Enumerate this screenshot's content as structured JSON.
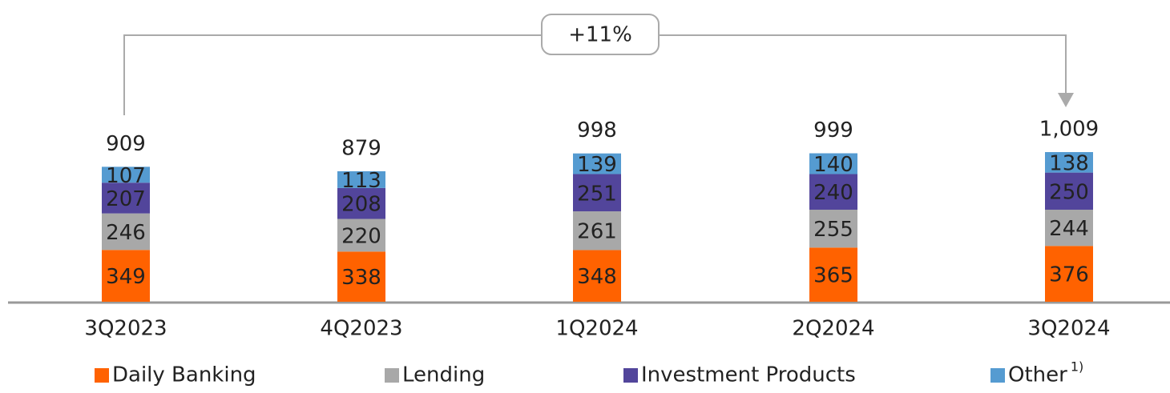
{
  "chart_data": {
    "type": "stacked_bar",
    "annotation": "+11%",
    "categories": [
      "3Q2023",
      "4Q2023",
      "1Q2024",
      "2Q2024",
      "3Q2024"
    ],
    "series": [
      {
        "name": "Daily Banking",
        "color": "#ff6200",
        "values": [
          349,
          338,
          348,
          365,
          376
        ]
      },
      {
        "name": "Lending",
        "color": "#a8a8a8",
        "values": [
          246,
          220,
          261,
          255,
          244
        ]
      },
      {
        "name": "Investment Products",
        "color": "#52459b",
        "values": [
          207,
          208,
          251,
          240,
          250
        ]
      },
      {
        "name": "Other",
        "color": "#559bd1",
        "values": [
          107,
          113,
          139,
          140,
          138
        ]
      }
    ],
    "legend_footnote": "1)",
    "totals": {
      "values": [
        909,
        879,
        998,
        999,
        1009
      ],
      "value_labels": [
        "909",
        "879",
        "998",
        "999",
        "1,009"
      ]
    }
  }
}
